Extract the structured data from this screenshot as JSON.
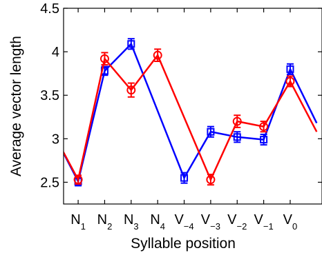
{
  "chart_data": {
    "type": "line",
    "title": "",
    "xlabel": "Syllable position",
    "ylabel": "Average vector length",
    "ylim": [
      2.25,
      4.5
    ],
    "yticks": [
      2.5,
      3,
      3.5,
      4,
      4.5
    ],
    "grid": false,
    "legend": "none",
    "categories": [
      {
        "base": "N",
        "sub": "1"
      },
      {
        "base": "N",
        "sub": "2"
      },
      {
        "base": "N",
        "sub": "3"
      },
      {
        "base": "N",
        "sub": "4"
      },
      {
        "base": "V",
        "sub": "−4"
      },
      {
        "base": "V",
        "sub": "−3"
      },
      {
        "base": "V",
        "sub": "−2"
      },
      {
        "base": "V",
        "sub": "−1"
      },
      {
        "base": "V",
        "sub": "0"
      }
    ],
    "x_visible_range": [
      -0.55,
      9.2
    ],
    "series": [
      {
        "color": "#0000ff",
        "marker": "square",
        "start_value_offscreen": 3.1,
        "values": [
          2.51,
          3.78,
          4.09,
          null,
          2.55,
          3.08,
          3.02,
          2.99,
          3.8
        ],
        "errors": [
          0.05,
          0.05,
          0.06,
          null,
          0.06,
          0.06,
          0.06,
          0.06,
          0.06
        ],
        "end_value_offscreen": 3.18
      },
      {
        "color": "#ff0000",
        "marker": "circle",
        "start_value_offscreen": 3.1,
        "values": [
          2.53,
          3.92,
          3.56,
          3.96,
          null,
          2.53,
          3.2,
          3.14,
          3.66
        ],
        "errors": [
          0.05,
          0.07,
          0.08,
          0.07,
          null,
          0.06,
          0.07,
          0.06,
          0.06
        ],
        "end_value_offscreen": 3.08
      }
    ]
  }
}
